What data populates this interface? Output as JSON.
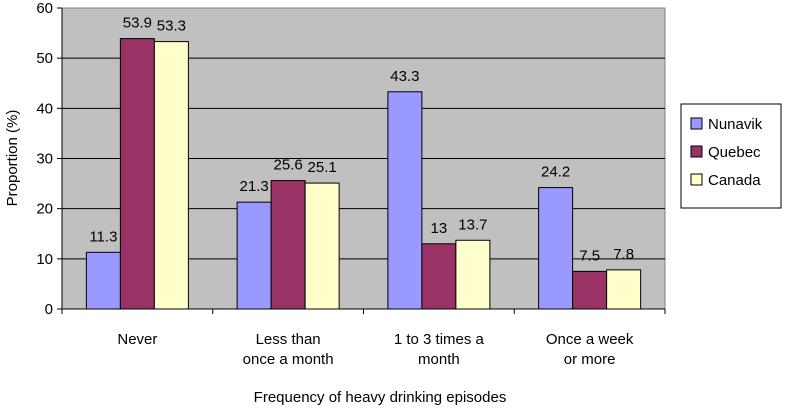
{
  "chart_data": {
    "type": "bar",
    "title": "",
    "xlabel": "Frequency of heavy drinking episodes",
    "ylabel": "Proportion (%)",
    "ylim": [
      0,
      60
    ],
    "yticks": [
      0,
      10,
      20,
      30,
      40,
      50,
      60
    ],
    "grid": true,
    "legend_position": "right",
    "categories": [
      [
        "Never"
      ],
      [
        "Less than",
        "once a month"
      ],
      [
        "1 to 3 times a",
        "month"
      ],
      [
        "Once a week",
        "or more"
      ]
    ],
    "series": [
      {
        "name": "Nunavik",
        "color": "#9999FF",
        "values": [
          11.3,
          21.3,
          43.3,
          24.2
        ],
        "labels": [
          "11.3",
          "21.3",
          "43.3",
          "24.2"
        ]
      },
      {
        "name": "Quebec",
        "color": "#993366",
        "values": [
          53.9,
          25.6,
          13,
          7.5
        ],
        "labels": [
          "53.9",
          "25.6",
          "13",
          "7.5"
        ]
      },
      {
        "name": "Canada",
        "color": "#FFFFCC",
        "values": [
          53.3,
          25.1,
          13.7,
          7.8
        ],
        "labels": [
          "53.3",
          "25.1",
          "13.7",
          "7.8"
        ]
      }
    ],
    "plot_background": "#C0C0C0"
  }
}
